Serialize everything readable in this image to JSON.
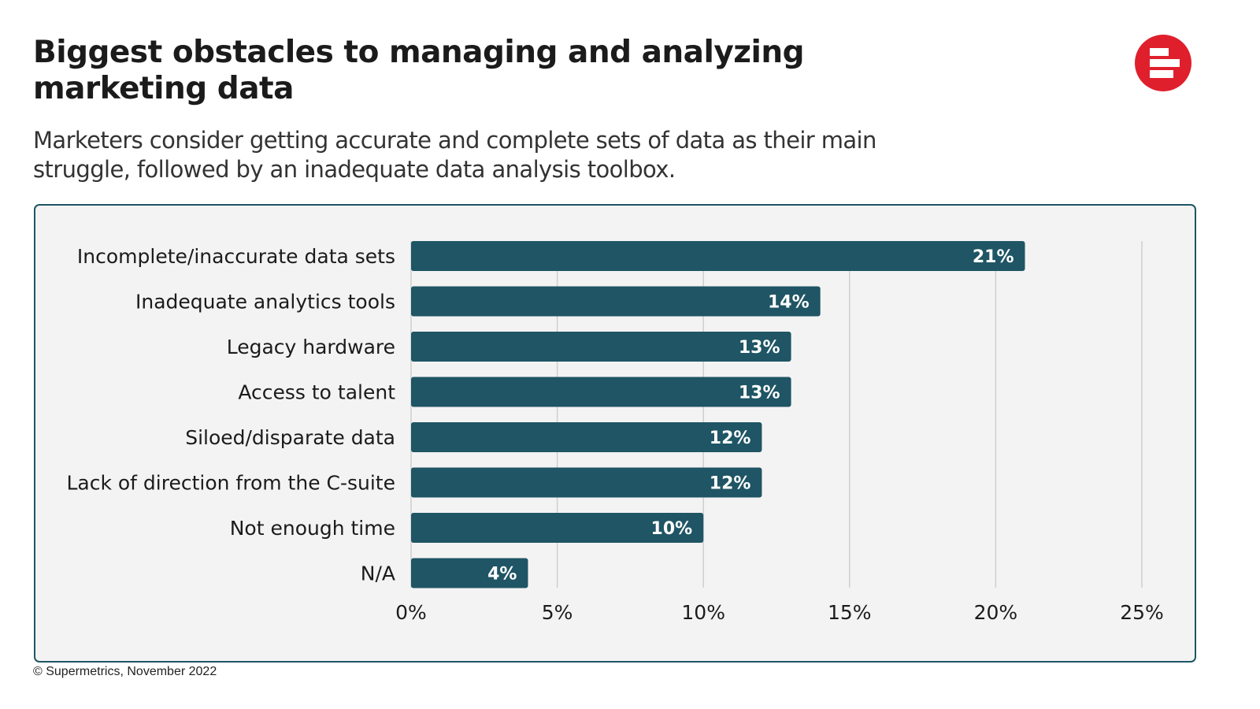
{
  "header": {
    "title": "Biggest obstacles to managing and analyzing marketing data",
    "subtitle": "Marketers consider getting accurate and complete sets of data as their main struggle, followed by an inadequate data analysis toolbox.",
    "logo_icon": "supermetrics-logo-icon"
  },
  "chart_data": {
    "type": "bar",
    "orientation": "horizontal",
    "categories": [
      "Incomplete/inaccurate data sets",
      "Inadequate analytics tools",
      "Legacy hardware",
      "Access to talent",
      "Siloed/disparate data",
      "Lack of direction from the C-suite",
      "Not enough time",
      "N/A"
    ],
    "values": [
      21,
      14,
      13,
      13,
      12,
      12,
      10,
      4
    ],
    "data_labels": [
      "21%",
      "14%",
      "13%",
      "13%",
      "12%",
      "12%",
      "10%",
      "4%"
    ],
    "x_ticks": [
      0,
      5,
      10,
      15,
      20,
      25
    ],
    "x_tick_labels": [
      "0%",
      "5%",
      "10%",
      "15%",
      "20%",
      "25%"
    ],
    "xlim": [
      0,
      25
    ],
    "grid": "vertical",
    "bar_color": "#1f5564",
    "title": "Biggest obstacles to managing and analyzing marketing data",
    "xlabel": "",
    "ylabel": ""
  },
  "footer": {
    "source": "© Supermetrics, November 2022"
  }
}
